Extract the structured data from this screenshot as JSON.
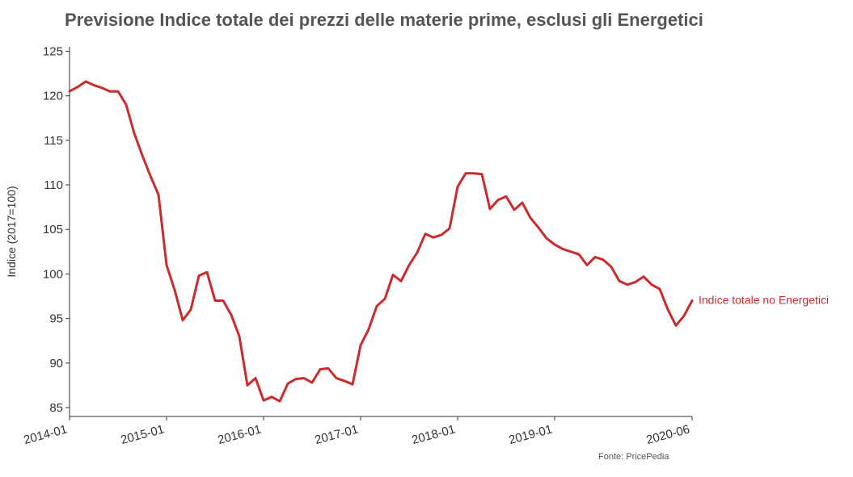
{
  "chart_data": {
    "type": "line",
    "title": "Previsione Indice totale dei prezzi delle materie prime, esclusi gli Energetici",
    "xlabel": "",
    "ylabel": "Indice (2017=100)",
    "source": "Fonte: PricePedia",
    "ylim": [
      84,
      125.5
    ],
    "xlim": [
      "2014-01",
      "2020-06"
    ],
    "y_ticks": [
      85,
      90,
      95,
      100,
      105,
      110,
      115,
      120,
      125
    ],
    "x_ticks": [
      "2014-01",
      "2015-01",
      "2016-01",
      "2017-01",
      "2018-01",
      "2019-01",
      "2020-06"
    ],
    "grid": false,
    "colors": {
      "series": "#cc2b2e",
      "axis": "#333333",
      "title": "#555555"
    },
    "series": [
      {
        "name": "Indice totale no Energetici",
        "x": [
          "2014-01",
          "2014-02",
          "2014-03",
          "2014-04",
          "2014-05",
          "2014-06",
          "2014-07",
          "2014-08",
          "2014-09",
          "2014-10",
          "2014-11",
          "2014-12",
          "2015-01",
          "2015-02",
          "2015-03",
          "2015-04",
          "2015-05",
          "2015-06",
          "2015-07",
          "2015-08",
          "2015-09",
          "2015-10",
          "2015-11",
          "2015-12",
          "2016-01",
          "2016-02",
          "2016-03",
          "2016-04",
          "2016-05",
          "2016-06",
          "2016-07",
          "2016-08",
          "2016-09",
          "2016-10",
          "2016-11",
          "2016-12",
          "2017-01",
          "2017-02",
          "2017-03",
          "2017-04",
          "2017-05",
          "2017-06",
          "2017-07",
          "2017-08",
          "2017-09",
          "2017-10",
          "2017-11",
          "2017-12",
          "2018-01",
          "2018-02",
          "2018-03",
          "2018-04",
          "2018-05",
          "2018-06",
          "2018-07",
          "2018-08",
          "2018-09",
          "2018-10",
          "2018-11",
          "2018-12",
          "2019-01",
          "2019-02",
          "2019-03",
          "2019-04",
          "2019-05",
          "2019-06",
          "2019-07",
          "2019-08",
          "2019-09",
          "2019-10",
          "2019-11",
          "2019-12",
          "2020-01",
          "2020-02",
          "2020-03",
          "2020-04",
          "2020-05",
          "2020-06"
        ],
        "values": [
          120.5,
          121.0,
          121.6,
          121.2,
          120.9,
          120.5,
          120.5,
          119.0,
          115.8,
          113.3,
          111.0,
          108.9,
          101.0,
          98.2,
          94.8,
          96.0,
          99.8,
          100.2,
          97.0,
          97.0,
          95.4,
          93.0,
          87.5,
          88.3,
          85.8,
          86.2,
          85.7,
          87.7,
          88.2,
          88.3,
          87.8,
          89.3,
          89.4,
          88.3,
          88.0,
          87.6,
          92.0,
          93.8,
          96.4,
          97.2,
          99.9,
          99.2,
          101.0,
          102.4,
          104.5,
          104.1,
          104.4,
          105.1,
          109.8,
          111.3,
          111.3,
          111.2,
          107.3,
          108.3,
          108.7,
          107.2,
          108.0,
          106.3,
          105.2,
          104.0,
          103.3,
          102.8,
          102.5,
          102.2,
          101.0,
          101.9,
          101.6,
          100.8,
          99.2,
          98.8,
          99.1,
          99.7,
          98.8,
          98.3,
          96.0,
          94.2,
          95.3,
          97.0
        ]
      }
    ]
  }
}
